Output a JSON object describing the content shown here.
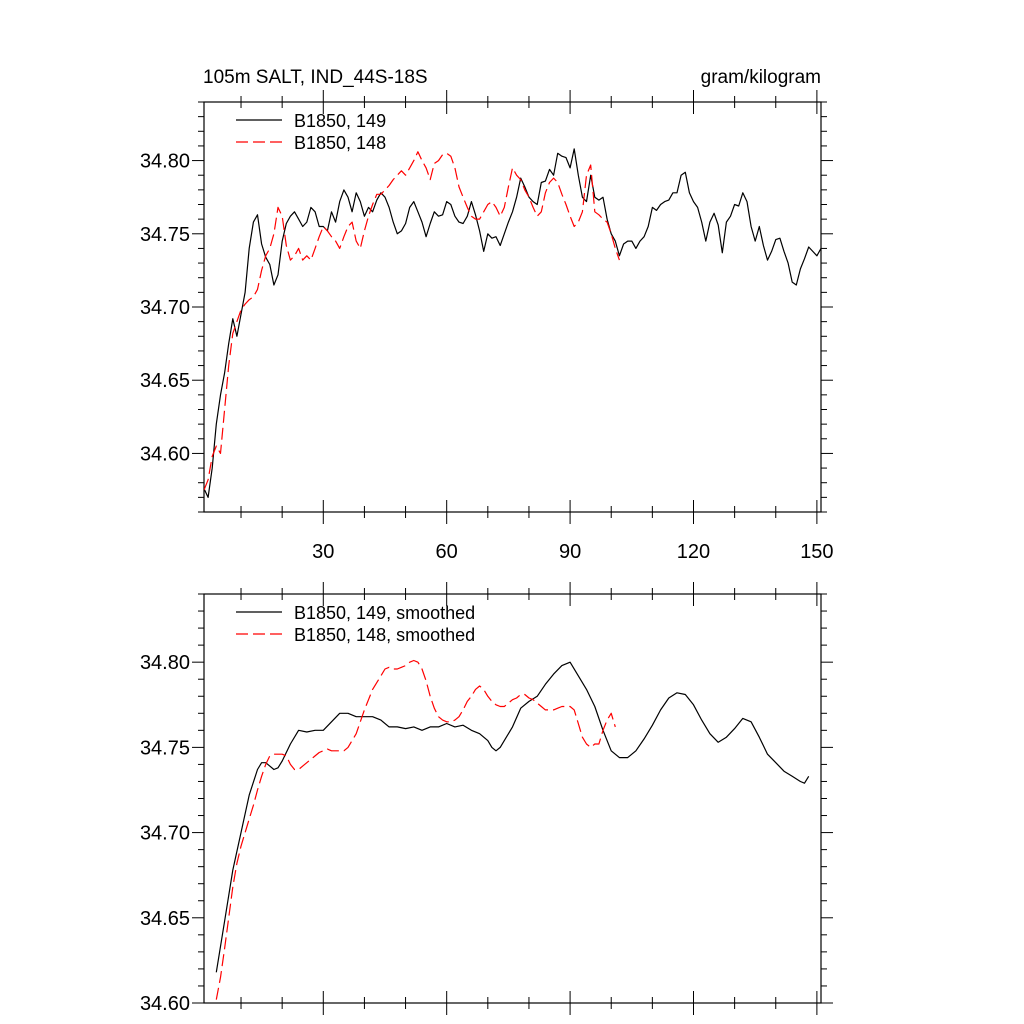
{
  "header": {
    "title": "105m SALT, IND_44S-18S",
    "units": "gram/kilogram"
  },
  "chart_data": [
    {
      "type": "line",
      "xlim": [
        1,
        151
      ],
      "ylim": [
        34.56,
        34.84
      ],
      "xticks": [
        30,
        60,
        90,
        120,
        150
      ],
      "yticks": [
        34.6,
        34.65,
        34.7,
        34.75,
        34.8
      ],
      "ytick_labels": [
        "34.60",
        "34.65",
        "34.70",
        "34.75",
        "34.80"
      ],
      "xtick_labels": [
        "30",
        "60",
        "90",
        "120",
        "150"
      ],
      "grid": false,
      "legend_position": "top-left",
      "series": [
        {
          "name": "B1850, 149",
          "color": "#000000",
          "dash": "solid",
          "x": [
            1,
            2,
            3,
            4,
            5,
            6,
            7,
            8,
            9,
            10,
            11,
            12,
            13,
            14,
            15,
            16,
            17,
            18,
            19,
            20,
            21,
            22,
            23,
            24,
            25,
            26,
            27,
            28,
            29,
            30,
            31,
            32,
            33,
            34,
            35,
            36,
            37,
            38,
            39,
            40,
            41,
            42,
            43,
            44,
            45,
            46,
            47,
            48,
            49,
            50,
            51,
            52,
            53,
            54,
            55,
            56,
            57,
            58,
            59,
            60,
            61,
            62,
            63,
            64,
            65,
            66,
            67,
            68,
            69,
            70,
            71,
            72,
            73,
            74,
            75,
            76,
            77,
            78,
            79,
            80,
            81,
            82,
            83,
            84,
            85,
            86,
            87,
            88,
            89,
            90,
            91,
            92,
            93,
            94,
            95,
            96,
            97,
            98,
            99,
            100,
            101,
            102,
            103,
            104,
            105,
            106,
            107,
            108,
            109,
            110,
            111,
            112,
            113,
            114,
            115,
            116,
            117,
            118,
            119,
            120,
            121,
            122,
            123,
            124,
            125,
            126,
            127,
            128,
            129,
            130,
            131,
            132,
            133,
            134,
            135,
            136,
            137,
            138,
            139,
            140,
            141,
            142,
            143,
            144,
            145,
            146,
            147,
            148,
            149,
            150,
            151
          ],
          "y": [
            34.576,
            34.57,
            34.59,
            34.62,
            34.64,
            34.655,
            34.675,
            34.692,
            34.68,
            34.695,
            34.71,
            34.74,
            34.758,
            34.763,
            34.743,
            34.734,
            34.729,
            34.715,
            34.722,
            34.745,
            34.757,
            34.762,
            34.765,
            34.76,
            34.755,
            34.758,
            34.768,
            34.765,
            34.755,
            34.755,
            34.752,
            34.765,
            34.758,
            34.772,
            34.78,
            34.775,
            34.765,
            34.778,
            34.772,
            34.762,
            34.768,
            34.765,
            34.773,
            34.778,
            34.775,
            34.768,
            34.758,
            34.75,
            34.752,
            34.757,
            34.768,
            34.772,
            34.765,
            34.758,
            34.748,
            34.757,
            34.765,
            34.762,
            34.763,
            34.772,
            34.77,
            34.762,
            34.758,
            34.757,
            34.762,
            34.772,
            34.763,
            34.752,
            34.738,
            34.75,
            34.747,
            34.748,
            34.742,
            34.75,
            34.758,
            34.765,
            34.775,
            34.788,
            34.782,
            34.775,
            34.772,
            34.77,
            34.785,
            34.786,
            34.794,
            34.79,
            34.805,
            34.803,
            34.802,
            34.795,
            34.808,
            34.79,
            34.775,
            34.772,
            34.79,
            34.775,
            34.773,
            34.775,
            34.76,
            34.75,
            34.745,
            34.735,
            34.743,
            34.745,
            34.745,
            34.74,
            34.745,
            34.748,
            34.755,
            34.768,
            34.766,
            34.77,
            34.772,
            34.773,
            34.778,
            34.778,
            34.79,
            34.792,
            34.778,
            34.772,
            34.768,
            34.758,
            34.745,
            34.758,
            34.764,
            34.756,
            34.737,
            34.758,
            34.762,
            34.77,
            34.769,
            34.778,
            34.772,
            34.755,
            34.745,
            34.755,
            34.742,
            34.732,
            34.738,
            34.746,
            34.747,
            34.738,
            34.73,
            34.717,
            34.715,
            34.726,
            34.733,
            34.741,
            34.738,
            34.735,
            34.74
          ]
        },
        {
          "name": "B1850, 148",
          "color": "#ff0000",
          "dash": "dashed",
          "x": [
            1,
            2,
            3,
            4,
            5,
            6,
            7,
            8,
            9,
            10,
            11,
            12,
            13,
            14,
            15,
            16,
            17,
            18,
            19,
            20,
            21,
            22,
            23,
            24,
            25,
            26,
            27,
            28,
            29,
            30,
            31,
            32,
            33,
            34,
            35,
            36,
            37,
            38,
            39,
            40,
            41,
            42,
            43,
            44,
            45,
            46,
            47,
            48,
            49,
            50,
            51,
            52,
            53,
            54,
            55,
            56,
            57,
            58,
            59,
            60,
            61,
            62,
            63,
            64,
            65,
            66,
            67,
            68,
            69,
            70,
            71,
            72,
            73,
            74,
            75,
            76,
            77,
            78,
            79,
            80,
            81,
            82,
            83,
            84,
            85,
            86,
            87,
            88,
            89,
            90,
            91,
            92,
            93,
            94,
            95,
            96,
            97,
            98,
            99,
            100,
            101,
            102
          ],
          "y": [
            34.575,
            34.582,
            34.598,
            34.605,
            34.6,
            34.63,
            34.66,
            34.682,
            34.69,
            34.698,
            34.702,
            34.705,
            34.707,
            34.712,
            34.725,
            34.735,
            34.74,
            34.75,
            34.768,
            34.762,
            34.742,
            34.732,
            34.735,
            34.74,
            34.732,
            34.735,
            34.732,
            34.74,
            34.748,
            34.755,
            34.752,
            34.748,
            34.745,
            34.74,
            34.748,
            34.755,
            34.758,
            34.745,
            34.74,
            34.752,
            34.762,
            34.77,
            34.777,
            34.777,
            34.78,
            34.783,
            34.787,
            34.79,
            34.793,
            34.79,
            34.795,
            34.8,
            34.806,
            34.8,
            34.795,
            34.787,
            34.798,
            34.8,
            34.804,
            34.805,
            34.803,
            34.795,
            34.782,
            34.775,
            34.768,
            34.762,
            34.76,
            34.76,
            34.765,
            34.77,
            34.772,
            34.768,
            34.762,
            34.768,
            34.782,
            34.795,
            34.79,
            34.787,
            34.78,
            34.775,
            34.768,
            34.762,
            34.765,
            34.778,
            34.785,
            34.788,
            34.785,
            34.777,
            34.77,
            34.762,
            34.755,
            34.758,
            34.765,
            34.79,
            34.797,
            34.765,
            34.763,
            34.76,
            34.758,
            34.75,
            34.74,
            34.732
          ]
        }
      ]
    },
    {
      "type": "line",
      "xlim": [
        1,
        151
      ],
      "ylim": [
        34.6,
        34.84
      ],
      "yticks": [
        34.6,
        34.65,
        34.7,
        34.75,
        34.8
      ],
      "ytick_labels": [
        "34.60",
        "34.65",
        "34.70",
        "34.75",
        "34.80"
      ],
      "grid": false,
      "legend_position": "top-left",
      "series": [
        {
          "name": "B1850, 149, smoothed",
          "color": "#000000",
          "dash": "solid",
          "x": [
            4,
            6,
            8,
            10,
            12,
            14,
            15,
            16,
            17,
            18,
            19,
            20,
            22,
            24,
            26,
            28,
            30,
            32,
            34,
            36,
            38,
            40,
            42,
            44,
            46,
            48,
            50,
            52,
            54,
            56,
            58,
            60,
            62,
            64,
            66,
            68,
            70,
            71,
            72,
            73,
            74,
            76,
            78,
            80,
            82,
            84,
            86,
            88,
            90,
            92,
            94,
            96,
            98,
            100,
            102,
            104,
            106,
            108,
            110,
            112,
            114,
            116,
            118,
            120,
            122,
            124,
            126,
            128,
            130,
            132,
            134,
            136,
            138,
            140,
            142,
            144,
            146,
            147,
            148
          ],
          "y": [
            34.618,
            34.648,
            34.678,
            34.7,
            34.722,
            34.737,
            34.741,
            34.741,
            34.739,
            34.737,
            34.738,
            34.742,
            34.752,
            34.76,
            34.759,
            34.76,
            34.76,
            34.765,
            34.77,
            34.77,
            34.768,
            34.768,
            34.768,
            34.766,
            34.762,
            34.762,
            34.761,
            34.762,
            34.76,
            34.762,
            34.762,
            34.764,
            34.762,
            34.763,
            34.76,
            34.758,
            34.754,
            34.75,
            34.748,
            34.75,
            34.754,
            34.762,
            34.773,
            34.777,
            34.78,
            34.787,
            34.793,
            34.798,
            34.8,
            34.792,
            34.784,
            34.774,
            34.76,
            34.748,
            34.744,
            34.744,
            34.748,
            34.755,
            34.763,
            34.772,
            34.779,
            34.782,
            34.781,
            34.775,
            34.766,
            34.758,
            34.753,
            34.756,
            34.761,
            34.767,
            34.765,
            34.756,
            34.746,
            34.741,
            34.736,
            34.733,
            34.73,
            34.729,
            34.733
          ]
        },
        {
          "name": "B1850, 148, smoothed",
          "color": "#ff0000",
          "dash": "dashed",
          "x": [
            4,
            5,
            6,
            7,
            8,
            9,
            10,
            11,
            12,
            13,
            14,
            15,
            16,
            17,
            18,
            19,
            20,
            21,
            22,
            23,
            24,
            25,
            26,
            27,
            28,
            29,
            30,
            31,
            32,
            33,
            34,
            35,
            36,
            37,
            38,
            39,
            40,
            41,
            42,
            43,
            44,
            45,
            46,
            47,
            48,
            49,
            50,
            51,
            52,
            53,
            54,
            55,
            56,
            57,
            58,
            59,
            60,
            61,
            62,
            63,
            64,
            65,
            66,
            67,
            68,
            69,
            70,
            71,
            72,
            73,
            74,
            75,
            76,
            77,
            78,
            79,
            80,
            81,
            82,
            83,
            84,
            85,
            86,
            87,
            88,
            89,
            90,
            91,
            92,
            93,
            94,
            95,
            96,
            97,
            98,
            99,
            100,
            101
          ],
          "y": [
            34.602,
            34.615,
            34.632,
            34.65,
            34.668,
            34.682,
            34.692,
            34.7,
            34.708,
            34.716,
            34.725,
            34.733,
            34.74,
            34.745,
            34.746,
            34.746,
            34.746,
            34.745,
            34.74,
            34.737,
            34.737,
            34.739,
            34.741,
            34.743,
            34.745,
            34.747,
            34.748,
            34.749,
            34.748,
            34.748,
            34.748,
            34.748,
            34.75,
            34.754,
            34.758,
            34.765,
            34.772,
            34.778,
            34.784,
            34.788,
            34.792,
            34.796,
            34.797,
            34.796,
            34.796,
            34.797,
            34.798,
            34.8,
            34.801,
            34.8,
            34.796,
            34.789,
            34.78,
            34.773,
            34.768,
            34.766,
            34.765,
            34.765,
            34.766,
            34.768,
            34.772,
            34.777,
            34.78,
            34.784,
            34.786,
            34.784,
            34.78,
            34.777,
            34.775,
            34.774,
            34.774,
            34.776,
            34.778,
            34.779,
            34.781,
            34.781,
            34.779,
            34.778,
            34.776,
            34.774,
            34.772,
            34.772,
            34.772,
            34.773,
            34.774,
            34.774,
            34.774,
            34.772,
            34.764,
            34.756,
            34.752,
            34.75,
            34.752,
            34.752,
            34.76,
            34.766,
            34.77,
            34.762
          ]
        }
      ]
    }
  ]
}
